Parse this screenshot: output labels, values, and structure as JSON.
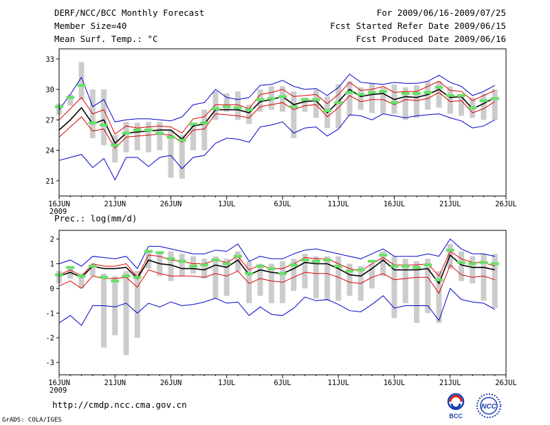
{
  "header": {
    "title": "DERF/NCC/BCC Monthly Forecast",
    "member_size": "Member Size=40",
    "variable": "Mean Surf. Temp.: °C",
    "forecast_period": "For 2009/06/16-2009/07/25",
    "start_refer_date": "Fcst Started Refer Date 2009/06/15",
    "produced_date": "Fcst Produced Date 2009/06/16"
  },
  "footer": {
    "url": "http://cmdp.ncc.cma.gov.cn",
    "credit": "GrADS: COLA/IGES",
    "logo_left": "BCC",
    "logo_right": "NCC"
  },
  "colors": {
    "box": "#cccccc",
    "mean": "#00aa00",
    "median_marker": "#66e066",
    "ensemble_line": "#000000",
    "inner_band": "#dd0000",
    "outer_band": "#0000cc"
  },
  "chart_data": [
    {
      "type": "line",
      "title": "Mean Surf. Temp.: °C",
      "xlabel": "",
      "ylabel": "°C",
      "ylim": [
        19.5,
        34
      ],
      "yticks": [
        21,
        24,
        27,
        30,
        33
      ],
      "xlim": [
        16,
        56
      ],
      "xticks": [
        {
          "x": 16,
          "label": "16JUN",
          "sub": "2009"
        },
        {
          "x": 21,
          "label": "21JUN"
        },
        {
          "x": 26,
          "label": "26JUN"
        },
        {
          "x": 31,
          "label": "1JUL"
        },
        {
          "x": 36,
          "label": "6JUL"
        },
        {
          "x": 41,
          "label": "11JUL"
        },
        {
          "x": 46,
          "label": "16JUL"
        },
        {
          "x": 51,
          "label": "21JUL"
        },
        {
          "x": 56,
          "label": "26JUL"
        }
      ],
      "days": [
        16,
        17,
        18,
        19,
        20,
        21,
        22,
        23,
        24,
        25,
        26,
        27,
        28,
        29,
        30,
        31,
        32,
        33,
        34,
        35,
        36,
        37,
        38,
        39,
        40,
        41,
        42,
        43,
        44,
        45,
        46,
        47,
        48,
        49,
        50,
        51,
        52,
        53,
        54,
        55
      ],
      "box_low": [
        27.5,
        28.4,
        29.0,
        25.2,
        24.5,
        22.8,
        23.8,
        24.0,
        23.8,
        24.0,
        21.3,
        21.2,
        24.0,
        24.0,
        27.0,
        27.8,
        27.0,
        26.6,
        27.8,
        28.0,
        27.8,
        25.2,
        27.8,
        27.2,
        26.2,
        26.2,
        27.4,
        28.0,
        27.7,
        27.6,
        27.6,
        27.0,
        27.2,
        28.0,
        28.2,
        27.6,
        27.4,
        27.2,
        27.0,
        27.0
      ],
      "box_high": [
        28.6,
        29.5,
        32.7,
        30.0,
        30.0,
        25.5,
        26.8,
        26.7,
        26.8,
        26.8,
        26.0,
        25.5,
        26.6,
        28.0,
        29.8,
        29.6,
        29.8,
        28.5,
        30.0,
        30.3,
        30.3,
        29.8,
        29.2,
        30.0,
        29.3,
        30.5,
        30.8,
        30.2,
        30.6,
        30.2,
        30.5,
        30.2,
        30.4,
        30.8,
        30.8,
        30.3,
        29.5,
        29.2,
        29.6,
        30.0
      ],
      "median_markers": [
        28.3,
        29.2,
        30.4,
        26.7,
        26.5,
        24.5,
        25.7,
        26.0,
        26.0,
        25.7,
        25.3,
        25.0,
        26.6,
        26.7,
        28.1,
        28.3,
        28.2,
        28.0,
        29.0,
        29.1,
        29.3,
        28.3,
        29.0,
        29.0,
        27.9,
        28.7,
        29.7,
        29.5,
        29.7,
        29.8,
        28.7,
        29.6,
        29.6,
        29.7,
        30.2,
        29.4,
        29.4,
        28.2,
        28.9,
        29.1
      ],
      "series": [
        {
          "name": "outer-upper",
          "values": [
            28.0,
            29.5,
            31.2,
            28.3,
            29.0,
            26.8,
            27.0,
            27.1,
            27.1,
            27.0,
            26.9,
            27.3,
            28.5,
            28.7,
            30.0,
            29.2,
            29.0,
            29.2,
            30.4,
            30.5,
            30.9,
            30.3,
            30.0,
            30.1,
            29.4,
            30.2,
            31.5,
            30.7,
            30.6,
            30.5,
            30.7,
            30.6,
            30.6,
            30.8,
            31.4,
            30.7,
            30.3,
            29.4,
            29.8,
            30.4
          ]
        },
        {
          "name": "inner-upper",
          "values": [
            27.0,
            28.1,
            29.2,
            27.6,
            28.0,
            25.6,
            26.4,
            26.2,
            26.3,
            26.4,
            26.3,
            25.7,
            27.1,
            27.3,
            28.5,
            28.5,
            28.5,
            28.1,
            29.5,
            29.7,
            30.0,
            29.3,
            29.4,
            29.5,
            28.6,
            29.5,
            30.7,
            29.9,
            30.0,
            30.3,
            29.7,
            29.8,
            29.8,
            30.3,
            30.8,
            29.9,
            29.8,
            28.9,
            29.4,
            29.9
          ]
        },
        {
          "name": "ensemble-mean",
          "values": [
            26.0,
            27.0,
            28.2,
            26.6,
            27.0,
            24.7,
            25.7,
            25.8,
            25.9,
            26.0,
            26.0,
            25.1,
            26.4,
            26.6,
            28.0,
            28.0,
            28.0,
            27.7,
            28.8,
            29.0,
            29.3,
            28.5,
            28.8,
            28.9,
            27.7,
            28.8,
            30.0,
            29.3,
            29.5,
            29.6,
            29.0,
            29.3,
            29.2,
            29.5,
            30.0,
            29.2,
            29.3,
            28.1,
            28.6,
            29.2
          ]
        },
        {
          "name": "inner-lower",
          "values": [
            25.3,
            26.3,
            27.3,
            25.9,
            26.1,
            24.2,
            25.3,
            25.4,
            25.5,
            25.6,
            25.5,
            24.8,
            26.0,
            26.1,
            27.6,
            27.5,
            27.4,
            27.2,
            28.3,
            28.5,
            28.7,
            28.0,
            28.4,
            28.5,
            27.3,
            28.2,
            29.4,
            28.8,
            29.0,
            29.0,
            28.5,
            29.0,
            28.9,
            29.1,
            29.7,
            28.8,
            28.9,
            27.7,
            28.1,
            28.8
          ]
        },
        {
          "name": "outer-lower",
          "values": [
            23.0,
            23.3,
            23.6,
            22.3,
            23.2,
            21.1,
            23.3,
            23.3,
            22.4,
            23.3,
            23.5,
            22.2,
            23.3,
            23.5,
            24.7,
            25.2,
            25.1,
            24.8,
            26.3,
            26.5,
            26.8,
            25.7,
            26.2,
            26.3,
            25.4,
            26.1,
            27.5,
            27.4,
            27.0,
            27.6,
            27.4,
            27.2,
            27.4,
            27.5,
            27.6,
            27.2,
            26.9,
            26.2,
            26.4,
            27.0
          ]
        }
      ]
    },
    {
      "type": "line",
      "title": "Prec.: log(mm/d)",
      "xlabel": "",
      "ylabel": "log(mm/d)",
      "ylim": [
        -3.5,
        2.35
      ],
      "yticks": [
        -3,
        -2,
        -1,
        0,
        1,
        2
      ],
      "xlim": [
        16,
        56
      ],
      "xticks": [
        {
          "x": 16,
          "label": "16JUN",
          "sub": "2009"
        },
        {
          "x": 21,
          "label": "21JUN"
        },
        {
          "x": 26,
          "label": "26JUN"
        },
        {
          "x": 31,
          "label": "1JUL"
        },
        {
          "x": 36,
          "label": "6JUL"
        },
        {
          "x": 41,
          "label": "11JUL"
        },
        {
          "x": 46,
          "label": "16JUL"
        },
        {
          "x": 51,
          "label": "21JUL"
        },
        {
          "x": 56,
          "label": "26JUL"
        }
      ],
      "days": [
        16,
        17,
        18,
        19,
        20,
        21,
        22,
        23,
        24,
        25,
        26,
        27,
        28,
        29,
        30,
        31,
        32,
        33,
        34,
        35,
        36,
        37,
        38,
        39,
        40,
        41,
        42,
        43,
        44,
        45,
        46,
        47,
        48,
        49,
        50,
        51,
        52,
        53,
        54,
        55
      ],
      "box_low": [
        0.2,
        0.4,
        0.0,
        0.5,
        -2.4,
        -1.9,
        -2.7,
        -2.0,
        0.8,
        0.5,
        0.3,
        0.5,
        0.6,
        0.4,
        -0.4,
        -0.3,
        0.7,
        -0.6,
        -0.3,
        -0.6,
        -0.6,
        -0.1,
        0.0,
        -0.4,
        -0.5,
        -0.5,
        -0.3,
        -0.5,
        0.0,
        0.5,
        -1.2,
        -0.6,
        -1.4,
        -1.0,
        -1.4,
        0.8,
        0.3,
        0.2,
        -0.5,
        -0.8
      ],
      "box_high": [
        0.7,
        0.8,
        0.6,
        1.0,
        0.6,
        0.5,
        0.7,
        0.7,
        1.5,
        1.5,
        1.5,
        1.4,
        1.3,
        1.2,
        1.3,
        1.2,
        1.5,
        1.1,
        1.0,
        1.0,
        1.1,
        1.2,
        1.4,
        1.3,
        1.3,
        1.3,
        1.0,
        0.9,
        1.0,
        1.5,
        1.3,
        1.2,
        1.1,
        1.2,
        0.7,
        1.8,
        1.5,
        1.3,
        1.4,
        1.4
      ],
      "median_markers": [
        0.55,
        0.85,
        0.5,
        0.9,
        0.45,
        0.3,
        0.5,
        0.45,
        1.5,
        1.45,
        1.2,
        1.1,
        0.9,
        0.95,
        1.15,
        1.0,
        1.3,
        0.6,
        0.9,
        0.8,
        0.6,
        0.95,
        1.15,
        1.1,
        1.15,
        0.9,
        0.7,
        0.75,
        1.1,
        1.35,
        0.9,
        0.9,
        0.85,
        0.95,
        0.35,
        1.55,
        1.05,
        1.0,
        1.05,
        1.0
      ],
      "series": [
        {
          "name": "outer-upper",
          "values": [
            1.0,
            1.15,
            0.9,
            1.3,
            1.25,
            1.2,
            1.3,
            0.8,
            1.7,
            1.7,
            1.6,
            1.5,
            1.4,
            1.4,
            1.55,
            1.5,
            1.8,
            1.1,
            1.3,
            1.2,
            1.2,
            1.4,
            1.55,
            1.6,
            1.5,
            1.4,
            1.3,
            1.2,
            1.4,
            1.6,
            1.3,
            1.3,
            1.3,
            1.4,
            1.3,
            2.0,
            1.6,
            1.4,
            1.4,
            1.3
          ]
        },
        {
          "name": "inner-upper",
          "values": [
            0.55,
            0.75,
            0.5,
            1.0,
            0.9,
            0.9,
            1.0,
            0.45,
            1.35,
            1.3,
            1.15,
            1.1,
            1.0,
            1.0,
            1.15,
            1.05,
            1.3,
            0.75,
            0.95,
            0.8,
            0.8,
            1.0,
            1.25,
            1.2,
            1.2,
            1.0,
            0.8,
            0.7,
            1.0,
            1.25,
            0.95,
            0.95,
            0.95,
            1.0,
            0.5,
            1.5,
            1.2,
            1.05,
            1.05,
            0.9
          ]
        },
        {
          "name": "ensemble-mean",
          "values": [
            0.5,
            0.65,
            0.45,
            0.9,
            0.8,
            0.8,
            0.85,
            0.4,
            1.15,
            1.0,
            0.95,
            0.8,
            0.8,
            0.75,
            0.95,
            0.85,
            1.15,
            0.55,
            0.75,
            0.65,
            0.6,
            0.8,
            1.05,
            1.0,
            1.0,
            0.8,
            0.55,
            0.5,
            0.8,
            1.15,
            0.75,
            0.75,
            0.75,
            0.8,
            0.2,
            1.35,
            0.95,
            0.85,
            0.85,
            0.75
          ]
        },
        {
          "name": "inner-lower",
          "values": [
            0.1,
            0.3,
            0.0,
            0.5,
            0.4,
            0.4,
            0.45,
            0.05,
            0.75,
            0.6,
            0.5,
            0.5,
            0.5,
            0.45,
            0.6,
            0.5,
            0.7,
            0.2,
            0.4,
            0.3,
            0.25,
            0.45,
            0.65,
            0.6,
            0.6,
            0.45,
            0.25,
            0.2,
            0.45,
            0.6,
            0.35,
            0.4,
            0.45,
            0.45,
            -0.2,
            0.95,
            0.55,
            0.45,
            0.5,
            0.35
          ]
        },
        {
          "name": "outer-lower",
          "values": [
            -1.4,
            -1.1,
            -1.5,
            -0.7,
            -0.7,
            -0.75,
            -0.6,
            -1.0,
            -0.6,
            -0.75,
            -0.55,
            -0.7,
            -0.65,
            -0.55,
            -0.4,
            -0.6,
            -0.55,
            -1.1,
            -0.75,
            -1.05,
            -1.1,
            -0.8,
            -0.35,
            -0.5,
            -0.45,
            -0.65,
            -0.9,
            -0.95,
            -0.65,
            -0.3,
            -0.8,
            -0.7,
            -0.7,
            -0.7,
            -1.3,
            0.0,
            -0.45,
            -0.55,
            -0.6,
            -0.85
          ]
        }
      ]
    }
  ]
}
